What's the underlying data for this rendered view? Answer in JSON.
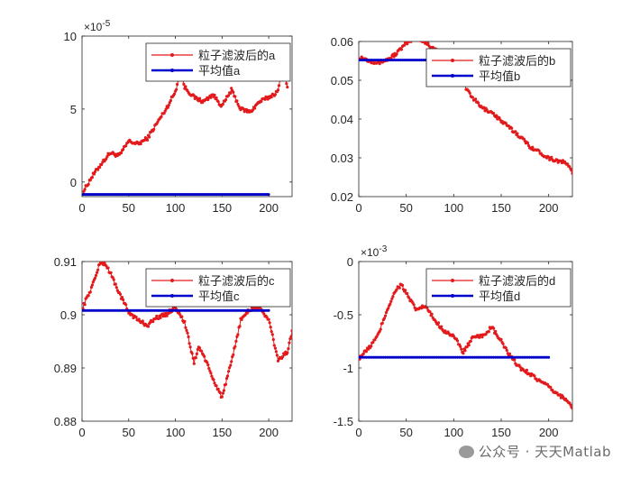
{
  "watermark": "公众号 · 天天Matlab",
  "colors": {
    "filtered": "#e31a1c",
    "mean": "#0000cc",
    "axis": "#262626"
  },
  "chart_data": [
    {
      "type": "line",
      "exponent_label": "10",
      "exponent_power": "-5",
      "xlim": [
        0,
        225
      ],
      "ylim": [
        -1,
        10
      ],
      "xticks": [
        0,
        50,
        100,
        150,
        200
      ],
      "yticks": [
        0,
        5,
        10
      ],
      "ytick_labels": [
        "0",
        "5",
        "10"
      ],
      "legend": {
        "position": "top-right",
        "filtered_label": "粒子滤波后的a",
        "mean_label": "平均值a"
      },
      "series": [
        {
          "name": "粒子滤波后的a",
          "x": [
            1,
            10,
            20,
            30,
            40,
            50,
            60,
            70,
            80,
            90,
            100,
            105,
            110,
            120,
            130,
            140,
            150,
            160,
            170,
            180,
            190,
            200,
            210,
            215,
            220
          ],
          "y": [
            -0.7,
            0.3,
            1.2,
            2.0,
            1.8,
            2.8,
            2.6,
            3.0,
            4.0,
            5.0,
            6.2,
            7.5,
            6.5,
            5.8,
            5.5,
            6.0,
            5.2,
            6.3,
            5.0,
            4.8,
            5.5,
            5.8,
            6.2,
            8.0,
            6.5
          ]
        },
        {
          "name": "平均值a",
          "x": [
            0,
            200
          ],
          "y": [
            -0.85,
            -0.85
          ]
        }
      ]
    },
    {
      "type": "line",
      "xlim": [
        0,
        225
      ],
      "ylim": [
        0.02,
        0.06
      ],
      "xticks": [
        0,
        50,
        100,
        150,
        200
      ],
      "yticks": [
        0.02,
        0.03,
        0.04,
        0.05,
        0.06
      ],
      "ytick_labels": [
        "0.02",
        "0.03",
        "0.04",
        "0.05",
        "0.06"
      ],
      "legend": {
        "position": "top-right",
        "filtered_label": "粒子滤波后的b",
        "mean_label": "平均值b"
      },
      "series": [
        {
          "name": "粒子滤波后的b",
          "x": [
            1,
            10,
            20,
            30,
            40,
            50,
            60,
            70,
            80,
            90,
            100,
            110,
            120,
            130,
            140,
            150,
            160,
            170,
            180,
            190,
            200,
            210,
            220,
            225
          ],
          "y": [
            0.056,
            0.0552,
            0.0545,
            0.0553,
            0.057,
            0.0595,
            0.061,
            0.0598,
            0.058,
            0.056,
            0.053,
            0.049,
            0.0455,
            0.0428,
            0.0418,
            0.0395,
            0.0375,
            0.0355,
            0.033,
            0.0315,
            0.03,
            0.0292,
            0.0285,
            0.026
          ]
        },
        {
          "name": "平均值b",
          "x": [
            0,
            200
          ],
          "y": [
            0.0552,
            0.0552
          ]
        }
      ]
    },
    {
      "type": "line",
      "xlim": [
        0,
        225
      ],
      "ylim": [
        0.88,
        0.91
      ],
      "xticks": [
        0,
        50,
        100,
        150,
        200
      ],
      "yticks": [
        0.88,
        0.89,
        0.9,
        0.91
      ],
      "ytick_labels": [
        "0.88",
        "0.89",
        "0.9",
        "0.91"
      ],
      "legend": {
        "position": "top-right",
        "filtered_label": "粒子滤波后的c",
        "mean_label": "平均值c"
      },
      "series": [
        {
          "name": "粒子滤波后的c",
          "x": [
            1,
            10,
            20,
            25,
            30,
            40,
            50,
            60,
            70,
            80,
            90,
            100,
            110,
            120,
            125,
            130,
            140,
            150,
            160,
            170,
            180,
            190,
            200,
            210,
            220,
            225
          ],
          "y": [
            0.9015,
            0.905,
            0.91,
            0.9095,
            0.908,
            0.904,
            0.9005,
            0.899,
            0.898,
            0.8995,
            0.9,
            0.9015,
            0.8985,
            0.891,
            0.894,
            0.8925,
            0.888,
            0.8845,
            0.891,
            0.899,
            0.901,
            0.9015,
            0.899,
            0.8915,
            0.893,
            0.897
          ]
        },
        {
          "name": "平均值c",
          "x": [
            0,
            200
          ],
          "y": [
            0.9008,
            0.9008
          ]
        }
      ]
    },
    {
      "type": "line",
      "exponent_label": "10",
      "exponent_power": "-3",
      "xlim": [
        0,
        225
      ],
      "ylim": [
        -1.5,
        0
      ],
      "xticks": [
        0,
        50,
        100,
        150,
        200
      ],
      "yticks": [
        -1.5,
        -1,
        -0.5,
        0
      ],
      "ytick_labels": [
        "-1.5",
        "-1",
        "-0.5",
        "0"
      ],
      "legend": {
        "position": "top-right",
        "filtered_label": "粒子滤波后的d",
        "mean_label": "平均值d"
      },
      "series": [
        {
          "name": "粒子滤波后的d",
          "x": [
            1,
            10,
            20,
            30,
            40,
            45,
            50,
            60,
            70,
            80,
            90,
            100,
            110,
            120,
            130,
            140,
            150,
            160,
            170,
            180,
            190,
            200,
            210,
            220,
            225
          ],
          "y": [
            -0.9,
            -0.82,
            -0.7,
            -0.45,
            -0.25,
            -0.22,
            -0.3,
            -0.45,
            -0.42,
            -0.55,
            -0.65,
            -0.7,
            -0.85,
            -0.72,
            -0.7,
            -0.62,
            -0.75,
            -0.9,
            -1.0,
            -1.05,
            -1.12,
            -1.18,
            -1.25,
            -1.3,
            -1.38
          ]
        },
        {
          "name": "平均值d",
          "x": [
            0,
            200
          ],
          "y": [
            -0.9,
            -0.9
          ]
        }
      ]
    }
  ]
}
